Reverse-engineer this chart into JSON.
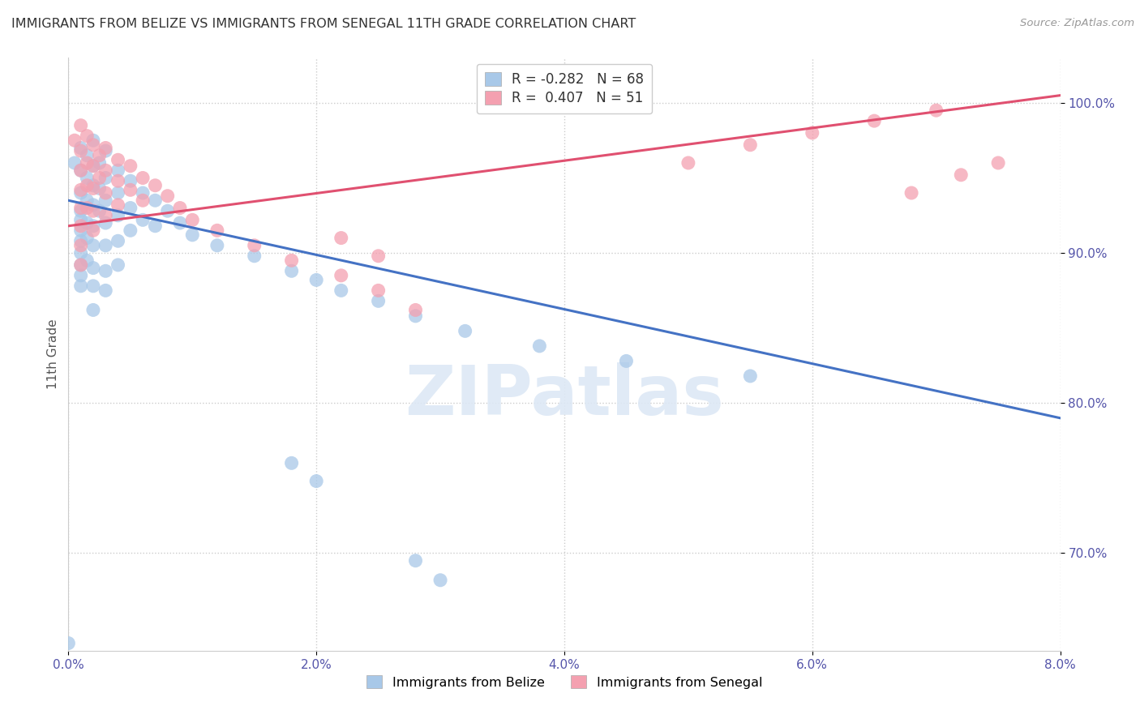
{
  "title": "IMMIGRANTS FROM BELIZE VS IMMIGRANTS FROM SENEGAL 11TH GRADE CORRELATION CHART",
  "source": "Source: ZipAtlas.com",
  "ylabel_label": "11th Grade",
  "legend_blue_label": "Immigrants from Belize",
  "legend_pink_label": "Immigrants from Senegal",
  "R_blue": -0.282,
  "N_blue": 68,
  "R_pink": 0.407,
  "N_pink": 51,
  "blue_color": "#a8c8e8",
  "pink_color": "#f4a0b0",
  "blue_line_color": "#4472c4",
  "pink_line_color": "#e05070",
  "xmin": 0.0,
  "xmax": 0.08,
  "ymin": 0.635,
  "ymax": 1.03,
  "blue_trend_x0": 0.0,
  "blue_trend_y0": 0.935,
  "blue_trend_x1": 0.08,
  "blue_trend_y1": 0.79,
  "pink_trend_x0": 0.0,
  "pink_trend_y0": 0.918,
  "pink_trend_x1": 0.08,
  "pink_trend_y1": 1.005,
  "watermark_text": "ZIPatlas",
  "blue_dots": [
    [
      0.0005,
      0.96
    ],
    [
      0.001,
      0.97
    ],
    [
      0.001,
      0.955
    ],
    [
      0.001,
      0.94
    ],
    [
      0.001,
      0.928
    ],
    [
      0.001,
      0.922
    ],
    [
      0.001,
      0.915
    ],
    [
      0.001,
      0.908
    ],
    [
      0.001,
      0.9
    ],
    [
      0.001,
      0.892
    ],
    [
      0.001,
      0.885
    ],
    [
      0.001,
      0.878
    ],
    [
      0.0015,
      0.965
    ],
    [
      0.0015,
      0.95
    ],
    [
      0.0015,
      0.935
    ],
    [
      0.0015,
      0.92
    ],
    [
      0.0015,
      0.91
    ],
    [
      0.0015,
      0.895
    ],
    [
      0.002,
      0.975
    ],
    [
      0.002,
      0.958
    ],
    [
      0.002,
      0.945
    ],
    [
      0.002,
      0.932
    ],
    [
      0.002,
      0.918
    ],
    [
      0.002,
      0.905
    ],
    [
      0.002,
      0.89
    ],
    [
      0.002,
      0.878
    ],
    [
      0.002,
      0.862
    ],
    [
      0.0025,
      0.96
    ],
    [
      0.0025,
      0.943
    ],
    [
      0.0025,
      0.928
    ],
    [
      0.003,
      0.968
    ],
    [
      0.003,
      0.95
    ],
    [
      0.003,
      0.935
    ],
    [
      0.003,
      0.92
    ],
    [
      0.003,
      0.905
    ],
    [
      0.003,
      0.888
    ],
    [
      0.003,
      0.875
    ],
    [
      0.004,
      0.955
    ],
    [
      0.004,
      0.94
    ],
    [
      0.004,
      0.925
    ],
    [
      0.004,
      0.908
    ],
    [
      0.004,
      0.892
    ],
    [
      0.005,
      0.948
    ],
    [
      0.005,
      0.93
    ],
    [
      0.005,
      0.915
    ],
    [
      0.006,
      0.94
    ],
    [
      0.006,
      0.922
    ],
    [
      0.007,
      0.935
    ],
    [
      0.007,
      0.918
    ],
    [
      0.008,
      0.928
    ],
    [
      0.009,
      0.92
    ],
    [
      0.01,
      0.912
    ],
    [
      0.012,
      0.905
    ],
    [
      0.015,
      0.898
    ],
    [
      0.018,
      0.888
    ],
    [
      0.02,
      0.882
    ],
    [
      0.022,
      0.875
    ],
    [
      0.025,
      0.868
    ],
    [
      0.028,
      0.858
    ],
    [
      0.032,
      0.848
    ],
    [
      0.038,
      0.838
    ],
    [
      0.045,
      0.828
    ],
    [
      0.055,
      0.818
    ],
    [
      0.018,
      0.76
    ],
    [
      0.02,
      0.748
    ],
    [
      0.028,
      0.695
    ],
    [
      0.03,
      0.682
    ],
    [
      0.0,
      0.64
    ]
  ],
  "pink_dots": [
    [
      0.0005,
      0.975
    ],
    [
      0.001,
      0.985
    ],
    [
      0.001,
      0.968
    ],
    [
      0.001,
      0.955
    ],
    [
      0.001,
      0.942
    ],
    [
      0.001,
      0.93
    ],
    [
      0.001,
      0.918
    ],
    [
      0.001,
      0.905
    ],
    [
      0.001,
      0.892
    ],
    [
      0.0015,
      0.978
    ],
    [
      0.0015,
      0.96
    ],
    [
      0.0015,
      0.945
    ],
    [
      0.0015,
      0.93
    ],
    [
      0.002,
      0.972
    ],
    [
      0.002,
      0.958
    ],
    [
      0.002,
      0.943
    ],
    [
      0.002,
      0.928
    ],
    [
      0.002,
      0.915
    ],
    [
      0.0025,
      0.965
    ],
    [
      0.0025,
      0.95
    ],
    [
      0.003,
      0.97
    ],
    [
      0.003,
      0.955
    ],
    [
      0.003,
      0.94
    ],
    [
      0.003,
      0.925
    ],
    [
      0.004,
      0.962
    ],
    [
      0.004,
      0.948
    ],
    [
      0.004,
      0.932
    ],
    [
      0.005,
      0.958
    ],
    [
      0.005,
      0.942
    ],
    [
      0.006,
      0.95
    ],
    [
      0.006,
      0.935
    ],
    [
      0.007,
      0.945
    ],
    [
      0.008,
      0.938
    ],
    [
      0.009,
      0.93
    ],
    [
      0.01,
      0.922
    ],
    [
      0.012,
      0.915
    ],
    [
      0.015,
      0.905
    ],
    [
      0.018,
      0.895
    ],
    [
      0.022,
      0.885
    ],
    [
      0.025,
      0.875
    ],
    [
      0.028,
      0.862
    ],
    [
      0.022,
      0.91
    ],
    [
      0.025,
      0.898
    ],
    [
      0.05,
      0.96
    ],
    [
      0.055,
      0.972
    ],
    [
      0.06,
      0.98
    ],
    [
      0.065,
      0.988
    ],
    [
      0.07,
      0.995
    ],
    [
      0.075,
      0.96
    ],
    [
      0.068,
      0.94
    ],
    [
      0.072,
      0.952
    ]
  ]
}
